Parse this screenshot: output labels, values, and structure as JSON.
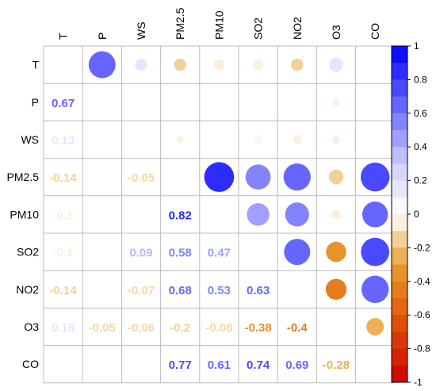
{
  "chart_data": {
    "type": "heatmap",
    "variables": [
      "T",
      "P",
      "WS",
      "PM2.5",
      "PM10",
      "SO2",
      "NO2",
      "O3",
      "CO"
    ],
    "cells": [
      {
        "row": "T",
        "col": "P",
        "r": 0.67
      },
      {
        "row": "T",
        "col": "WS",
        "r": 0.13
      },
      {
        "row": "T",
        "col": "PM2.5",
        "r": -0.14
      },
      {
        "row": "T",
        "col": "PM10",
        "r": -0.1
      },
      {
        "row": "T",
        "col": "SO2",
        "r": -0.1
      },
      {
        "row": "T",
        "col": "NO2",
        "r": -0.14
      },
      {
        "row": "T",
        "col": "O3",
        "r": 0.18
      },
      {
        "row": "P",
        "col": "O3",
        "r": -0.05
      },
      {
        "row": "WS",
        "col": "PM2.5",
        "r": -0.05
      },
      {
        "row": "WS",
        "col": "SO2",
        "r": 0.09
      },
      {
        "row": "WS",
        "col": "NO2",
        "r": -0.07
      },
      {
        "row": "WS",
        "col": "O3",
        "r": -0.06
      },
      {
        "row": "PM2.5",
        "col": "PM10",
        "r": 0.82
      },
      {
        "row": "PM2.5",
        "col": "SO2",
        "r": 0.58
      },
      {
        "row": "PM2.5",
        "col": "NO2",
        "r": 0.68
      },
      {
        "row": "PM2.5",
        "col": "O3",
        "r": -0.2
      },
      {
        "row": "PM2.5",
        "col": "CO",
        "r": 0.77
      },
      {
        "row": "PM10",
        "col": "SO2",
        "r": 0.47
      },
      {
        "row": "PM10",
        "col": "NO2",
        "r": 0.53
      },
      {
        "row": "PM10",
        "col": "O3",
        "r": -0.08
      },
      {
        "row": "PM10",
        "col": "CO",
        "r": 0.61
      },
      {
        "row": "SO2",
        "col": "NO2",
        "r": 0.63
      },
      {
        "row": "SO2",
        "col": "O3",
        "r": -0.38
      },
      {
        "row": "SO2",
        "col": "CO",
        "r": 0.74
      },
      {
        "row": "NO2",
        "col": "O3",
        "r": -0.4
      },
      {
        "row": "NO2",
        "col": "CO",
        "r": 0.69
      },
      {
        "row": "O3",
        "col": "CO",
        "r": -0.28
      }
    ],
    "upper_triangle": "circles",
    "lower_triangle": "numbers",
    "colorbar": {
      "ticks": [
        "1",
        "0.8",
        "0.6",
        "0.4",
        "0.2",
        "0",
        "-0.2",
        "-0.4",
        "-0.6",
        "-0.8",
        "-1"
      ],
      "range": [
        -1,
        1
      ],
      "bins": 20
    },
    "colors": {
      "positive_strong": "#0000ff",
      "positive_light": "#ccccff",
      "neutral": "#ffffff",
      "negative_light": "#fde7c6",
      "negative_mid": "#e8a033",
      "negative_strong": "#e25a0a",
      "negative_max": "#cc0000"
    },
    "grid": true,
    "legend_position": "right"
  }
}
